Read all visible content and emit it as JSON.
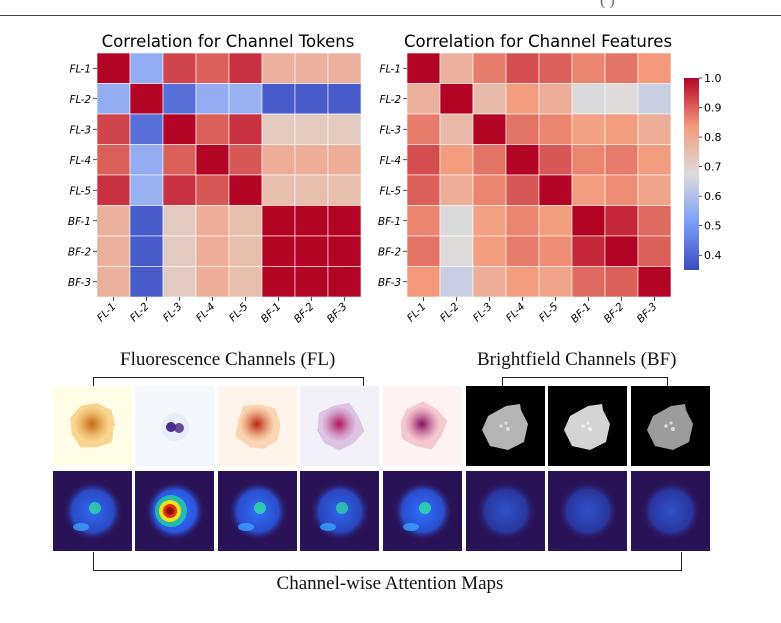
{
  "page": {
    "header_fragment": "(          )"
  },
  "chart_data": [
    {
      "type": "heatmap",
      "title": "Correlation for Channel Tokens",
      "row_labels": [
        "FL-1",
        "FL-2",
        "FL-3",
        "FL-4",
        "FL-5",
        "BF-1",
        "BF-2",
        "BF-3"
      ],
      "col_labels": [
        "FL-1",
        "FL-2",
        "FL-3",
        "FL-4",
        "FL-5",
        "BF-1",
        "BF-2",
        "BF-3"
      ],
      "values": [
        [
          1.0,
          0.55,
          0.93,
          0.9,
          0.95,
          0.78,
          0.78,
          0.78
        ],
        [
          0.55,
          1.0,
          0.42,
          0.55,
          0.56,
          0.38,
          0.38,
          0.38
        ],
        [
          0.93,
          0.42,
          1.0,
          0.9,
          0.95,
          0.72,
          0.72,
          0.72
        ],
        [
          0.9,
          0.55,
          0.9,
          1.0,
          0.91,
          0.79,
          0.79,
          0.79
        ],
        [
          0.95,
          0.56,
          0.95,
          0.91,
          1.0,
          0.75,
          0.75,
          0.75
        ],
        [
          0.78,
          0.38,
          0.72,
          0.79,
          0.75,
          1.0,
          1.0,
          1.0
        ],
        [
          0.78,
          0.38,
          0.72,
          0.79,
          0.75,
          1.0,
          1.0,
          1.0
        ],
        [
          0.78,
          0.38,
          0.72,
          0.79,
          0.75,
          1.0,
          1.0,
          1.0
        ]
      ],
      "colormap": "coolwarm",
      "vmin": 0.35,
      "vmax": 1.0
    },
    {
      "type": "heatmap",
      "title": "Correlation for Channel Features",
      "row_labels": [
        "FL-1",
        "FL-2",
        "FL-3",
        "FL-4",
        "FL-5",
        "BF-1",
        "BF-2",
        "BF-3"
      ],
      "col_labels": [
        "FL-1",
        "FL-2",
        "FL-3",
        "FL-4",
        "FL-5",
        "BF-1",
        "BF-2",
        "BF-3"
      ],
      "values": [
        [
          1.0,
          0.78,
          0.87,
          0.92,
          0.9,
          0.86,
          0.88,
          0.84
        ],
        [
          0.78,
          1.0,
          0.76,
          0.83,
          0.79,
          0.67,
          0.68,
          0.64
        ],
        [
          0.87,
          0.76,
          1.0,
          0.88,
          0.86,
          0.82,
          0.83,
          0.79
        ],
        [
          0.92,
          0.83,
          0.88,
          1.0,
          0.91,
          0.86,
          0.87,
          0.83
        ],
        [
          0.9,
          0.79,
          0.86,
          0.91,
          1.0,
          0.83,
          0.85,
          0.81
        ],
        [
          0.86,
          0.67,
          0.82,
          0.86,
          0.83,
          1.0,
          0.96,
          0.89
        ],
        [
          0.88,
          0.68,
          0.83,
          0.87,
          0.85,
          0.96,
          1.0,
          0.9
        ],
        [
          0.84,
          0.64,
          0.79,
          0.83,
          0.81,
          0.89,
          0.9,
          1.0
        ]
      ],
      "colormap": "coolwarm",
      "vmin": 0.35,
      "vmax": 1.0,
      "colorbar": {
        "ticks": [
          "1.0",
          "0.9",
          "0.8",
          "0.7",
          "0.6",
          "0.5",
          "0.4"
        ],
        "tick_values": [
          1.0,
          0.9,
          0.8,
          0.7,
          0.6,
          0.5,
          0.4
        ],
        "placement": "right"
      }
    }
  ],
  "figure": {
    "fl_group_label": "Fluorescence Channels (FL)",
    "bf_group_label": "Brightfield Channels (BF)",
    "attention_label": "Channel-wise Attention Maps",
    "channel_images": [
      {
        "channel": "FL-1",
        "bg": "#fffde6",
        "blob": "#f5c875",
        "core": "#c96a10",
        "kind": "fl"
      },
      {
        "channel": "FL-2",
        "bg": "#f4f8fd",
        "blob": "#e8eef8",
        "core": "#4a2b8c",
        "kind": "fl-small"
      },
      {
        "channel": "FL-3",
        "bg": "#fff4ea",
        "blob": "#f9c9a0",
        "core": "#b8250c",
        "kind": "fl"
      },
      {
        "channel": "FL-4",
        "bg": "#f2f0f8",
        "blob": "#d6b6dc",
        "core": "#b0145a",
        "kind": "fl"
      },
      {
        "channel": "FL-5",
        "bg": "#fff2f2",
        "blob": "#f2b9c6",
        "core": "#8a1060",
        "kind": "fl"
      },
      {
        "channel": "BF-1",
        "bg": "#000000",
        "blob": "#b4b4b4",
        "core": "#dcdcdc",
        "kind": "bf"
      },
      {
        "channel": "BF-2",
        "bg": "#000000",
        "blob": "#d4d4d4",
        "core": "#f0f0f0",
        "kind": "bf"
      },
      {
        "channel": "BF-3",
        "bg": "#000000",
        "blob": "#9c9c9c",
        "core": "#dadada",
        "kind": "bf"
      }
    ],
    "attention_maps": [
      {
        "channel": "FL-1",
        "intensity": 0.45
      },
      {
        "channel": "FL-2",
        "intensity": 1.0
      },
      {
        "channel": "FL-3",
        "intensity": 0.5
      },
      {
        "channel": "FL-4",
        "intensity": 0.4
      },
      {
        "channel": "FL-5",
        "intensity": 0.5
      },
      {
        "channel": "BF-1",
        "intensity": 0.18
      },
      {
        "channel": "BF-2",
        "intensity": 0.18
      },
      {
        "channel": "BF-3",
        "intensity": 0.18
      }
    ]
  }
}
